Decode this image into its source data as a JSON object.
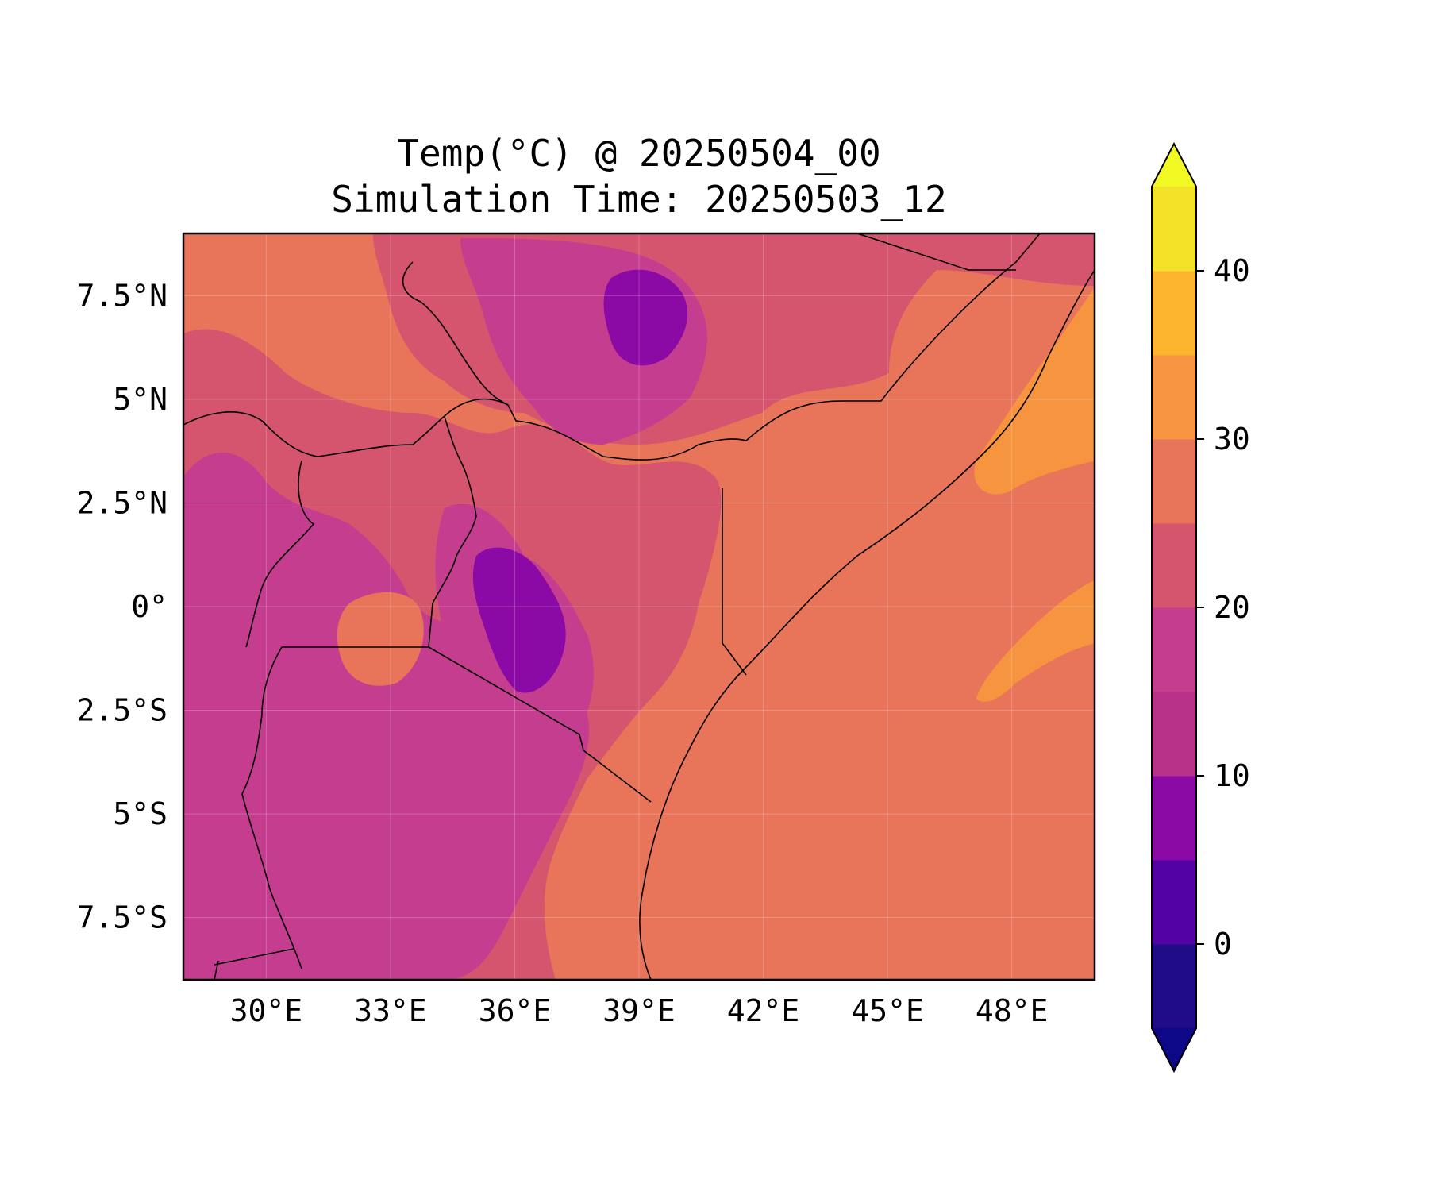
{
  "title": {
    "line1": "Temp(°C) @ 20250504_00",
    "line2": "Simulation Time: 20250503_12"
  },
  "map": {
    "lon_range": [
      28,
      50
    ],
    "lat_range": [
      -9,
      9
    ],
    "x_ticks": [
      {
        "value": 30,
        "label": "30°E"
      },
      {
        "value": 33,
        "label": "33°E"
      },
      {
        "value": 36,
        "label": "36°E"
      },
      {
        "value": 39,
        "label": "39°E"
      },
      {
        "value": 42,
        "label": "42°E"
      },
      {
        "value": 45,
        "label": "45°E"
      },
      {
        "value": 48,
        "label": "48°E"
      }
    ],
    "y_ticks": [
      {
        "value": 7.5,
        "label": "7.5°N"
      },
      {
        "value": 5,
        "label": "5°N"
      },
      {
        "value": 2.5,
        "label": "2.5°N"
      },
      {
        "value": 0,
        "label": "0°"
      },
      {
        "value": -2.5,
        "label": "2.5°S"
      },
      {
        "value": -5,
        "label": "5°S"
      },
      {
        "value": -7.5,
        "label": "7.5°S"
      }
    ],
    "gridlines": true,
    "borders": true,
    "coastlines": true
  },
  "colorbar": {
    "colormap": "plasma",
    "extend": "both",
    "levels": [
      -5,
      0,
      5,
      10,
      15,
      20,
      25,
      30,
      35,
      40,
      45
    ],
    "colors": [
      "#1f0c86",
      "#5302a3",
      "#8b0aa5",
      "#b83289",
      "#c53d8f",
      "#d5546e",
      "#e8745a",
      "#f7943f",
      "#fdb42f",
      "#f4e228"
    ],
    "under_color": "#0d0887",
    "over_color": "#f0f921",
    "ticks": [
      {
        "value": 0,
        "label": "0"
      },
      {
        "value": 10,
        "label": "10"
      },
      {
        "value": 20,
        "label": "20"
      },
      {
        "value": 30,
        "label": "30"
      },
      {
        "value": 40,
        "label": "40"
      }
    ]
  }
}
